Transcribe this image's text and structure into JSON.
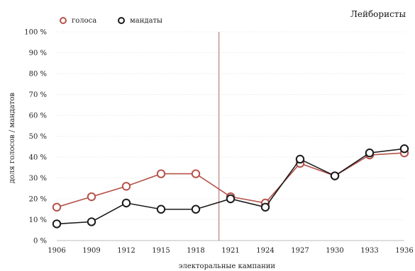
{
  "chart_data": {
    "type": "line",
    "title": "Лейбористы",
    "xlabel": "электоральные кампании",
    "ylabel": "доля голосов / мандатов",
    "x": [
      "1906",
      "1909",
      "1912",
      "1915",
      "1918",
      "1921",
      "1924",
      "1927",
      "1930",
      "1933",
      "1936"
    ],
    "y_ticks": [
      "0 %",
      "10 %",
      "20 %",
      "30 %",
      "40 %",
      "50 %",
      "60 %",
      "70 %",
      "80 %",
      "90 %",
      "100 %"
    ],
    "ylim": [
      0,
      100
    ],
    "grid": true,
    "legend_position": "top-left",
    "marker_line_x": "1920",
    "series": [
      {
        "name": "голоса",
        "color": "#b5524a",
        "values": [
          16,
          21,
          26,
          32,
          32,
          21,
          18,
          37,
          31,
          41,
          42
        ]
      },
      {
        "name": "мандаты",
        "color": "#1a1a1a",
        "values": [
          8,
          9,
          18,
          15,
          15,
          20,
          16,
          39,
          31,
          42,
          44
        ]
      }
    ],
    "divider_color": "#a9676a"
  }
}
